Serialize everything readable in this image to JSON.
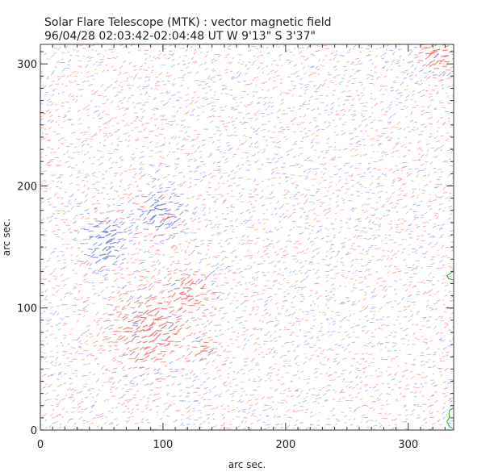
{
  "header": {
    "title": "Solar Flare Telescope (MTK) : vector magnetic field",
    "subtitle": "96/04/28  02:03:42-02:04:48 UT    W 9'13\"  S 3'37\""
  },
  "chart_data": {
    "type": "scatter",
    "title": "Solar Flare Telescope (MTK) : vector magnetic field",
    "subtitle": "96/04/28  02:03:42-02:04:48 UT    W 9'13\"  S 3'37\"",
    "xlabel": "arc sec.",
    "ylabel": "arc sec.",
    "xlim": [
      0,
      337
    ],
    "ylim": [
      0,
      316
    ],
    "x_ticks": [
      0,
      100,
      200,
      300
    ],
    "y_ticks": [
      0,
      100,
      200,
      300
    ],
    "grid": false,
    "legend": "none",
    "colors": {
      "positive_polarity": "#ee7a7a",
      "negative_polarity": "#7f86e0",
      "contour": "#22aa22",
      "axes": "#333333"
    },
    "concentrations": [
      {
        "polarity": "negative",
        "x": 98,
        "y": 178,
        "radius": 14
      },
      {
        "polarity": "negative",
        "x": 55,
        "y": 160,
        "radius": 12
      },
      {
        "polarity": "negative",
        "x": 52,
        "y": 145,
        "radius": 10
      },
      {
        "polarity": "positive",
        "x": 120,
        "y": 112,
        "radius": 13
      },
      {
        "polarity": "positive",
        "x": 90,
        "y": 82,
        "radius": 22
      },
      {
        "polarity": "positive",
        "x": 133,
        "y": 67,
        "radius": 6
      },
      {
        "polarity": "positive",
        "x": 325,
        "y": 308,
        "radius": 12
      }
    ]
  }
}
